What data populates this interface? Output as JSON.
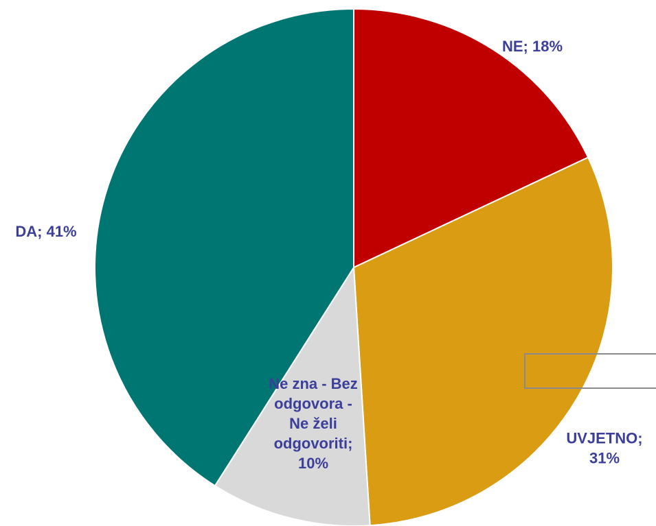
{
  "chart_data": {
    "type": "pie",
    "title": "",
    "slices": [
      {
        "label_lines": [
          "NE; 18%"
        ],
        "category": "NE",
        "value": 18,
        "color": "#c00000"
      },
      {
        "label_lines": [
          "UVJETNO;",
          "31%"
        ],
        "category": "UVJETNO",
        "value": 31,
        "color": "#d99c12"
      },
      {
        "label_lines": [
          "Ne zna - Bez",
          "odgovora -",
          "Ne želi",
          "odgovoriti;",
          "10%"
        ],
        "category": "Ne zna - Bez odgovora - Ne želi odgovoriti",
        "value": 10,
        "color": "#d9d9d9"
      },
      {
        "label_lines": [
          "DA; 41%"
        ],
        "category": "DA",
        "value": 41,
        "color": "#007672"
      }
    ],
    "start_angle": "12 o'clock",
    "direction": "clockwise",
    "label_color": "#3b3f9a",
    "legend": "none"
  }
}
